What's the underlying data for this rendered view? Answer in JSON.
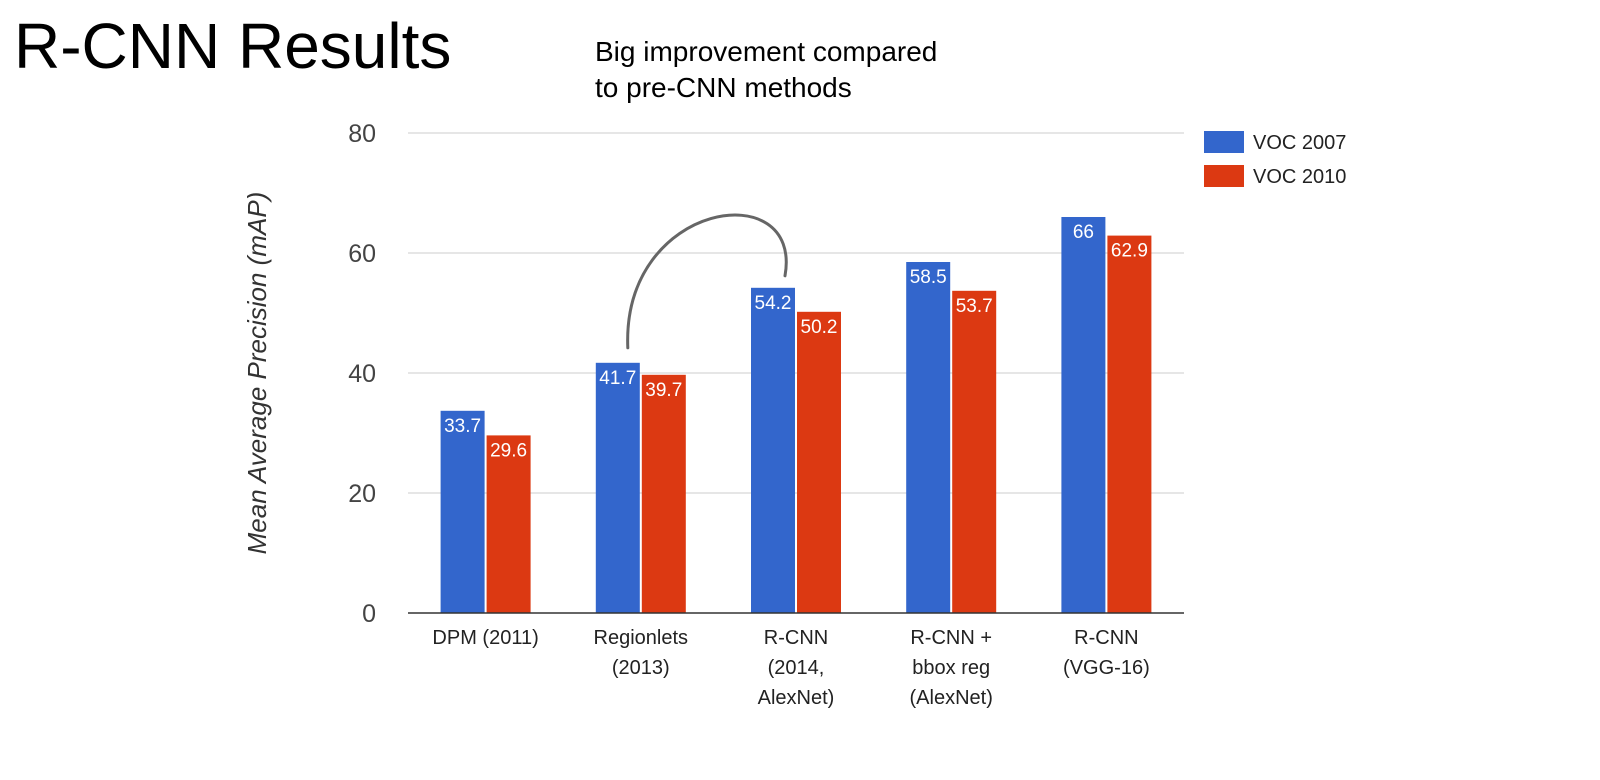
{
  "slide": {
    "title": "R-CNN Results",
    "subtitle_lines": [
      "Big improvement compared",
      "to pre-CNN methods"
    ]
  },
  "chart_data": {
    "type": "bar",
    "ylabel": "Mean Average Precision (mAP)",
    "xlabel": "",
    "ylim": [
      0,
      80
    ],
    "yticks": [
      0,
      20,
      40,
      60,
      80
    ],
    "grid": true,
    "legend_position": "top-right",
    "categories": [
      [
        "DPM (2011)"
      ],
      [
        "Regionlets",
        "(2013)"
      ],
      [
        "R-CNN",
        "(2014,",
        "AlexNet)"
      ],
      [
        "R-CNN +",
        "bbox reg",
        "(AlexNet)"
      ],
      [
        "R-CNN",
        "(VGG-16)"
      ]
    ],
    "series": [
      {
        "name": "VOC 2007",
        "color": "#3366cc",
        "values": [
          33.7,
          41.7,
          54.2,
          58.5,
          66
        ]
      },
      {
        "name": "VOC 2010",
        "color": "#dc3912",
        "values": [
          29.6,
          39.7,
          50.2,
          53.7,
          62.9
        ]
      }
    ],
    "annotations": [
      {
        "type": "arc",
        "from": {
          "category": 1,
          "series": 0
        },
        "to": {
          "category": 2,
          "series": 0
        }
      }
    ]
  }
}
